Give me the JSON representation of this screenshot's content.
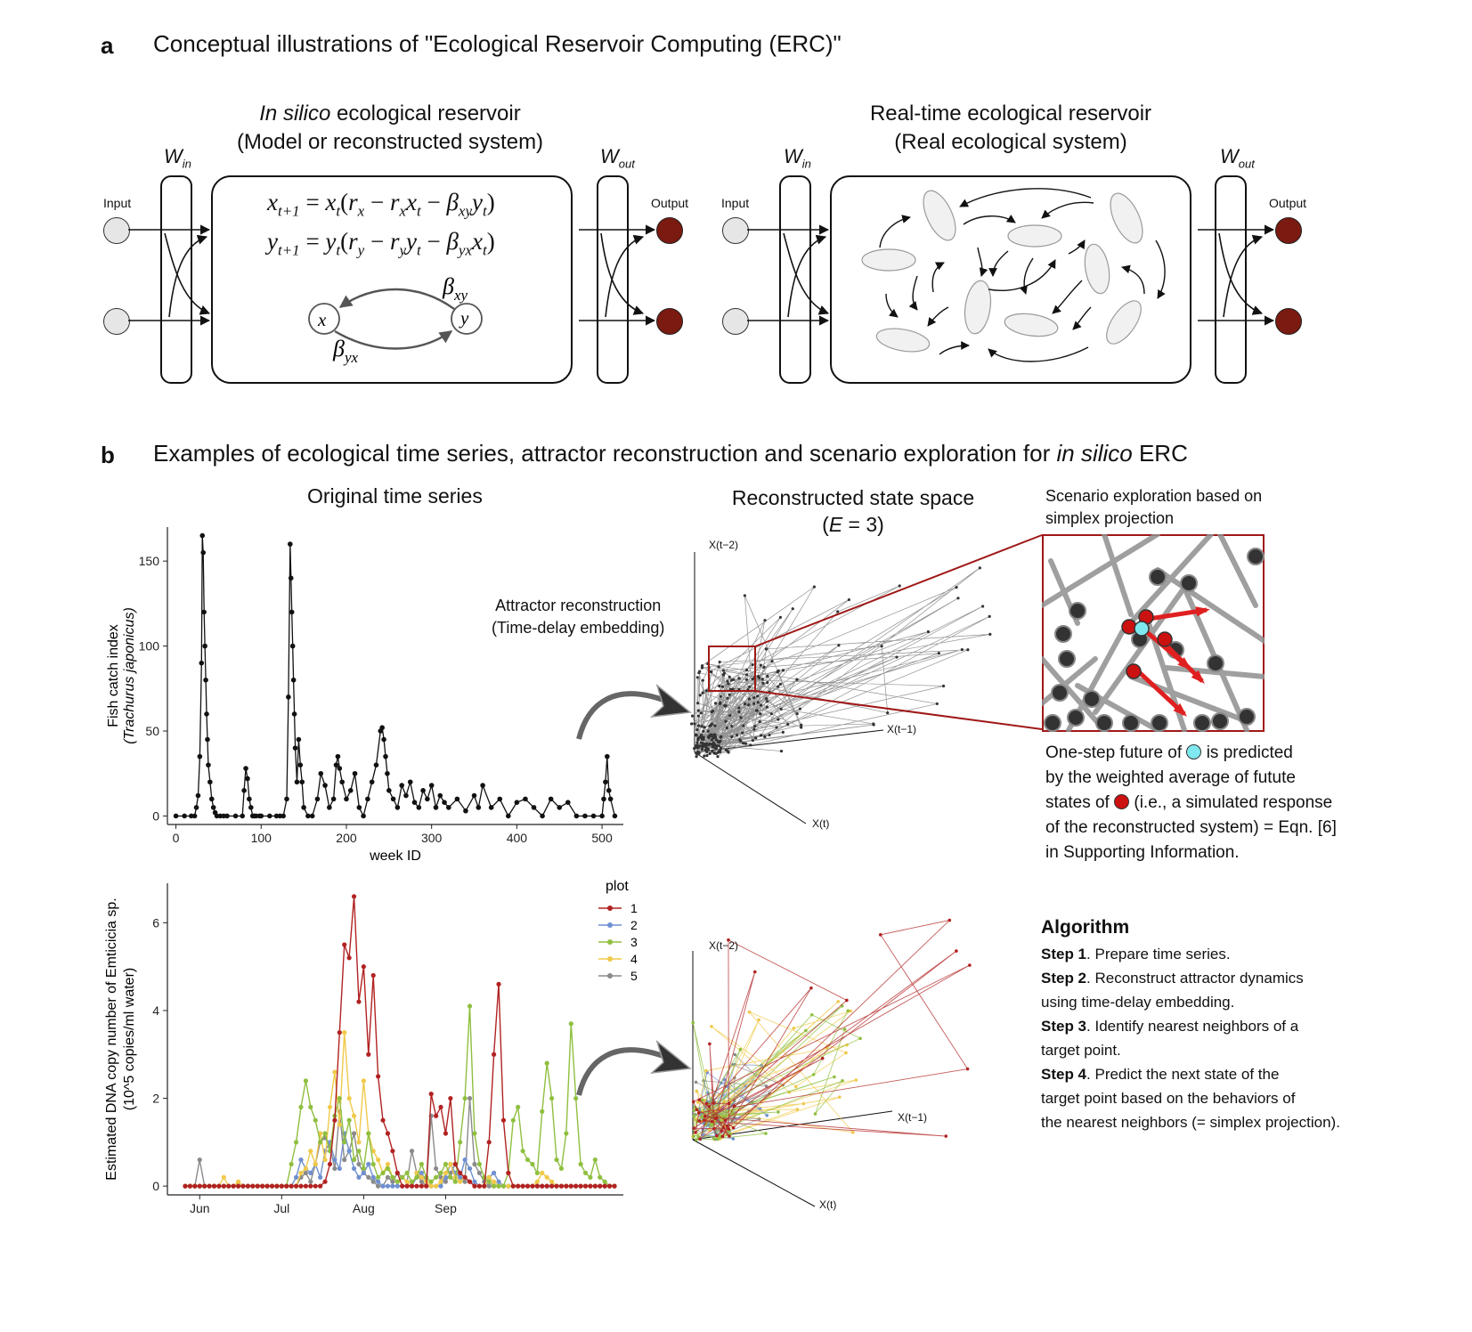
{
  "panel_a": {
    "letter": "a",
    "title": "Conceptual illustrations of \"Ecological Reservoir Computing (ERC)\"",
    "left": {
      "title_italic": "In silico",
      "title_rest": " ecological reservoir",
      "subtitle": "(Model or reconstructed system)",
      "w_in": "W",
      "w_in_sub": "in",
      "w_out": "W",
      "w_out_sub": "out",
      "input_label": "Input",
      "output_label": "Output",
      "node_x": "x",
      "node_y": "y",
      "beta_xy": "β",
      "beta_xy_sub": "xy",
      "beta_yx": "β",
      "beta_yx_sub": "yx"
    },
    "right": {
      "title": "Real-time ecological reservoir",
      "subtitle": "(Real ecological system)",
      "w_in": "W",
      "w_in_sub": "in",
      "w_out": "W",
      "w_out_sub": "out",
      "input_label": "Input",
      "output_label": "Output"
    }
  },
  "panel_b": {
    "letter": "b",
    "title_part1": "Examples of ecological time series, attractor reconstruction and scenario exploration for ",
    "title_italic": "in silico",
    "title_part2": " ERC",
    "col_title_original": "Original time series",
    "col_title_reconstructed": "Reconstructed state space",
    "col_title_E_prefix": "(",
    "col_title_E": "E",
    "col_title_E_suffix": " = 3)",
    "scenario_title_line1": "Scenario exploration based on",
    "scenario_title_line2": "simplex projection",
    "attractor_line1": "Attractor reconstruction",
    "attractor_line2": "(Time-delay embedding)",
    "onestep": {
      "l1a": "One-step future of ",
      "l1b": " is predicted",
      "l2": "by the weighted average of futute",
      "l3a": "states of ",
      "l3b": " (i.e., a simulated response",
      "l4": "of the reconstructed system) = Eqn. [6]",
      "l5": "in Supporting Information."
    },
    "axes3d": {
      "xt": "X(t)",
      "xt1": "X(t−1)",
      "xt2": "X(t−2)"
    },
    "algorithm": {
      "title": "Algorithm",
      "steps": [
        {
          "bold": "Step 1",
          "text": ". Prepare time series."
        },
        {
          "bold": "Step 2",
          "text": ". Reconstruct attractor dynamics"
        },
        {
          "bold": "",
          "text": "using time-delay embedding."
        },
        {
          "bold": "Step 3",
          "text": ". Identify nearest neighbors of a"
        },
        {
          "bold": "",
          "text": "target point."
        },
        {
          "bold": "Step 4",
          "text": ". Predict the next state of the"
        },
        {
          "bold": "",
          "text": "target point based on the behaviors of"
        },
        {
          "bold": "",
          "text": "the nearest neighbors (= simplex projection)."
        }
      ]
    }
  },
  "colors": {
    "output_node": "#7a1a10",
    "neighbor_red": "#cc1111",
    "target_cyan": "#7fe8f0",
    "zoom_box": "#a01818",
    "plot1": "#b22222",
    "plot2": "#6f8fd0",
    "plot3": "#8fbf3f",
    "plot4": "#f0c94a",
    "plot5": "#8a8a8a"
  },
  "chart_data": [
    {
      "type": "line",
      "xlabel": "week ID",
      "ylabel": "Fish catch index",
      "ylabel_line2": "(Trachurus japonicus)",
      "xlim": [
        -10,
        525
      ],
      "ylim": [
        -5,
        170
      ],
      "xticks": [
        0,
        100,
        200,
        300,
        400,
        500
      ],
      "yticks": [
        0,
        50,
        100,
        150
      ],
      "series": [
        {
          "x": [
            0,
            10,
            18,
            22,
            24,
            26,
            28,
            30,
            31,
            32,
            33,
            34,
            35,
            36,
            37,
            38,
            40,
            42,
            44,
            46,
            48,
            52,
            56,
            60,
            70,
            78,
            80,
            82,
            84,
            86,
            88,
            90,
            92,
            94,
            98,
            100,
            110,
            118,
            122,
            126,
            130,
            132,
            134,
            135,
            136,
            137,
            138,
            139,
            140,
            142,
            144,
            146,
            148,
            150,
            155,
            160,
            166,
            170,
            175,
            180,
            185,
            188,
            190,
            192,
            195,
            200,
            205,
            210,
            215,
            220,
            225,
            230,
            235,
            240,
            242,
            244,
            246,
            248,
            250,
            255,
            260,
            265,
            270,
            275,
            280,
            285,
            290,
            295,
            300,
            305,
            310,
            315,
            320,
            330,
            340,
            350,
            355,
            360,
            370,
            380,
            390,
            400,
            410,
            420,
            430,
            440,
            450,
            460,
            470,
            480,
            490,
            500,
            502,
            504,
            506,
            508,
            510,
            515
          ],
          "y": [
            0,
            0,
            0,
            0,
            5,
            12,
            35,
            90,
            165,
            155,
            120,
            100,
            80,
            60,
            45,
            30,
            20,
            10,
            5,
            2,
            0,
            0,
            0,
            0,
            0,
            0,
            15,
            28,
            22,
            10,
            5,
            0,
            0,
            0,
            0,
            0,
            0,
            0,
            0,
            0,
            10,
            70,
            160,
            140,
            120,
            100,
            80,
            60,
            40,
            20,
            45,
            30,
            20,
            5,
            0,
            0,
            10,
            25,
            18,
            5,
            10,
            30,
            35,
            28,
            20,
            10,
            15,
            25,
            5,
            0,
            10,
            20,
            30,
            50,
            52,
            45,
            35,
            25,
            15,
            10,
            5,
            18,
            12,
            20,
            8,
            5,
            15,
            10,
            18,
            5,
            12,
            8,
            5,
            10,
            3,
            12,
            5,
            18,
            5,
            10,
            0,
            8,
            10,
            5,
            0,
            10,
            5,
            8,
            0,
            0,
            0,
            0,
            10,
            20,
            35,
            15,
            10,
            0
          ]
        }
      ]
    },
    {
      "type": "line",
      "xlabel": "",
      "ylabel": "Estimated DNA copy number of Emticicia sp.",
      "ylabel_line2": "(10^5 copies/ml water)",
      "xticks": [
        "Jun",
        "Jul",
        "Aug",
        "Sep"
      ],
      "yticks": [
        0,
        2,
        4,
        6
      ],
      "ylim": [
        -0.2,
        6.9
      ],
      "legend_title": "plot",
      "legend_position": "top-right",
      "series": [
        {
          "name": "1",
          "values": [
            0,
            0,
            0,
            0,
            0,
            0,
            0,
            0,
            0,
            0,
            0,
            0,
            0,
            0,
            0,
            0,
            0,
            0,
            0,
            0,
            0,
            0,
            0,
            0,
            0,
            0,
            0,
            0,
            0,
            0.1,
            0.5,
            1.5,
            3.5,
            5.5,
            5.2,
            6.6,
            4.2,
            5.0,
            3.0,
            4.8,
            2.5,
            1.5,
            1.2,
            0.8,
            0.3,
            0,
            0,
            0,
            0,
            0,
            0,
            2.1,
            1.6,
            1.8,
            1.2,
            2.0,
            0.5,
            0.3,
            0.2,
            0.1,
            0,
            0,
            0,
            1.0,
            3.0,
            4.6,
            1.5,
            0.3,
            0,
            0,
            0,
            0,
            0,
            0,
            0,
            0,
            0,
            0,
            0,
            0,
            0,
            0,
            0,
            0,
            0,
            0,
            0,
            0,
            0,
            0
          ]
        },
        {
          "name": "2",
          "values": [
            0,
            0,
            0,
            0,
            0,
            0,
            0,
            0,
            0,
            0,
            0,
            0,
            0,
            0,
            0,
            0,
            0,
            0,
            0,
            0,
            0,
            0,
            0,
            0.2,
            0.6,
            0.4,
            0.3,
            0.5,
            0.2,
            0.8,
            1.0,
            0.6,
            0.4,
            1.2,
            0.8,
            0.4,
            0.2,
            0.3,
            0.5,
            0.2,
            0.1,
            0,
            0,
            0,
            0,
            0,
            0,
            0,
            0.2,
            0.3,
            0.1,
            0,
            0,
            0,
            0.2,
            0.5,
            0.3,
            0.2,
            0.6,
            0.4,
            0.1,
            0,
            0,
            0.2,
            0.3,
            0.1,
            0,
            0,
            0,
            0,
            0,
            0,
            0,
            0,
            0,
            0,
            0,
            0,
            0,
            0,
            0,
            0,
            0,
            0,
            0,
            0,
            0,
            0,
            0,
            0
          ]
        },
        {
          "name": "3",
          "values": [
            0,
            0,
            0,
            0,
            0,
            0,
            0,
            0,
            0,
            0,
            0,
            0,
            0,
            0,
            0,
            0,
            0,
            0,
            0,
            0,
            0,
            0,
            0.5,
            1.0,
            1.8,
            2.4,
            1.8,
            1.5,
            1.0,
            1.2,
            0.8,
            1.6,
            2.0,
            1.0,
            1.5,
            0.6,
            0.8,
            0.4,
            1.2,
            0.5,
            0.2,
            0.3,
            0.4,
            0.2,
            0.1,
            0.2,
            0.3,
            0.1,
            0.2,
            0.5,
            0.2,
            0.1,
            0.2,
            0.3,
            0.5,
            0.2,
            0.1,
            1.0,
            2.0,
            4.1,
            1.2,
            0.5,
            0.2,
            0.1,
            0,
            0,
            0,
            0.3,
            1.5,
            1.8,
            0.8,
            0.6,
            0.5,
            0.3,
            1.7,
            2.8,
            2.0,
            0.6,
            0.4,
            1.2,
            3.7,
            2.0,
            0.5,
            0.3,
            0.2,
            0.6,
            0.2,
            0.1,
            0,
            0
          ]
        },
        {
          "name": "4",
          "values": [
            0,
            0,
            0,
            0,
            0,
            0,
            0,
            0,
            0.2,
            0,
            0,
            0.1,
            0,
            0,
            0,
            0,
            0,
            0,
            0,
            0,
            0,
            0,
            0,
            0,
            0.3,
            0.4,
            0.8,
            0.5,
            1.2,
            0.6,
            1.8,
            2.6,
            1.4,
            3.5,
            2.0,
            1.6,
            1.0,
            2.4,
            1.2,
            0.8,
            0.6,
            0.3,
            0.5,
            0.2,
            0.1,
            0.2,
            0.1,
            0,
            0.3,
            0.2,
            0.1,
            0,
            0,
            0.1,
            0.3,
            0.5,
            0.2,
            0.1,
            0.2,
            0.1,
            0,
            0,
            0,
            0.2,
            0.1,
            0,
            0,
            0,
            0,
            0,
            0,
            0,
            0,
            0.1,
            0.3,
            0.2,
            0.1,
            0,
            0,
            0,
            0,
            0,
            0,
            0,
            0,
            0,
            0,
            0,
            0,
            0
          ]
        },
        {
          "name": "5",
          "values": [
            0,
            0,
            0,
            0.6,
            0,
            0,
            0,
            0,
            0,
            0,
            0,
            0,
            0,
            0,
            0,
            0,
            0,
            0,
            0,
            0,
            0,
            0,
            0,
            0,
            0.2,
            0.3,
            0.1,
            0.5,
            1.0,
            1.1,
            0.9,
            0.4,
            1.7,
            0.6,
            0.8,
            1.2,
            0.5,
            0.3,
            0.2,
            0.1,
            0,
            0,
            0.2,
            0.1,
            0.3,
            0.2,
            0.1,
            0.8,
            0.3,
            0.1,
            0,
            1.6,
            0.4,
            0.2,
            0.1,
            0.3,
            0.5,
            0.2,
            0.1,
            2.0,
            0.5,
            0.3,
            0.1,
            0,
            0,
            0,
            0,
            0,
            0,
            0,
            0,
            0,
            0,
            0,
            0,
            0,
            0,
            0,
            0,
            0,
            0,
            0,
            0,
            0,
            0,
            0,
            0,
            0,
            0,
            0
          ]
        }
      ]
    }
  ]
}
